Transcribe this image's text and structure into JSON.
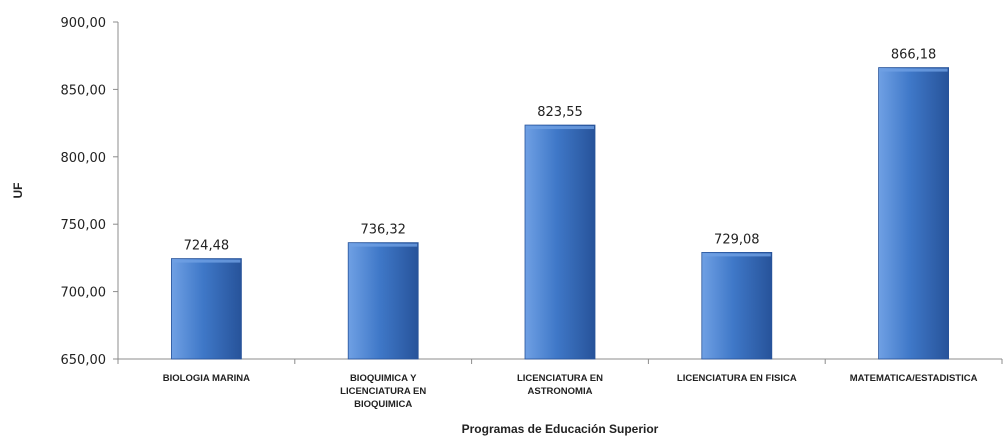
{
  "chart_data": {
    "type": "bar",
    "categories": [
      "BIOLOGIA MARINA",
      "BIOQUIMICA Y LICENCIATURA EN BIOQUIMICA",
      "LICENCIATURA EN ASTRONOMIA",
      "LICENCIATURA EN FISICA",
      "MATEMATICA/ESTADISTICA"
    ],
    "category_lines": [
      [
        "BIOLOGIA MARINA"
      ],
      [
        "BIOQUIMICA Y",
        "LICENCIATURA EN",
        "BIOQUIMICA"
      ],
      [
        "LICENCIATURA EN",
        "ASTRONOMIA"
      ],
      [
        "LICENCIATURA EN FISICA"
      ],
      [
        "MATEMATICA/ESTADISTICA"
      ]
    ],
    "values": [
      724.48,
      736.32,
      823.55,
      729.08,
      866.18
    ],
    "value_labels": [
      "724,48",
      "736,32",
      "823,55",
      "729,08",
      "866,18"
    ],
    "xlabel": "Programas de Educación Superior",
    "ylabel": "UF",
    "ylim": [
      650,
      900
    ],
    "yticks": [
      650,
      700,
      750,
      800,
      850,
      900
    ],
    "ytick_labels": [
      "650,00",
      "700,00",
      "750,00",
      "800,00",
      "850,00",
      "900,00"
    ],
    "grid": false,
    "legend": "none",
    "colors": {
      "bar": "#3f78c8",
      "bar_light": "#6fa0e4",
      "bar_dark": "#27539a",
      "axis": "#8c8c8c"
    }
  }
}
